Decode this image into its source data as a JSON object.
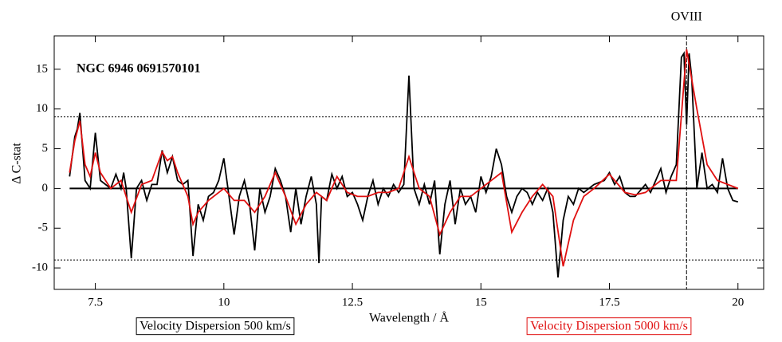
{
  "chart_data": {
    "type": "line",
    "text_label": "NGC 6946 0691570101",
    "x_label": "Wavelength / Å",
    "y_label": "Δ C-stat",
    "xlim": [
      6.7,
      20.5
    ],
    "ylim": [
      -12.7,
      19.2
    ],
    "xticks": [
      7.5,
      10,
      12.5,
      15,
      17.5,
      20
    ],
    "yticks": [
      -10,
      -5,
      0,
      5,
      10,
      15
    ],
    "hlines": [
      9,
      -9
    ],
    "zero_line": {
      "y": 0,
      "x": [
        7,
        20
      ]
    },
    "annotations": [
      {
        "text": "OVIII",
        "x": 19
      }
    ],
    "series": [
      {
        "name": "Velocity Dispersion 500 km/s",
        "color": "#000000",
        "x": [
          7.0,
          7.1,
          7.15,
          7.2,
          7.3,
          7.4,
          7.5,
          7.6,
          7.8,
          7.9,
          8.0,
          8.05,
          8.1,
          8.2,
          8.3,
          8.4,
          8.5,
          8.6,
          8.7,
          8.8,
          8.9,
          9.0,
          9.1,
          9.2,
          9.3,
          9.4,
          9.5,
          9.6,
          9.7,
          9.8,
          9.9,
          10.0,
          10.1,
          10.2,
          10.3,
          10.4,
          10.5,
          10.6,
          10.7,
          10.8,
          10.9,
          11.0,
          11.1,
          11.2,
          11.3,
          11.4,
          11.5,
          11.6,
          11.7,
          11.8,
          11.85,
          11.9,
          12.0,
          12.1,
          12.2,
          12.3,
          12.4,
          12.5,
          12.6,
          12.7,
          12.8,
          12.9,
          13.0,
          13.1,
          13.2,
          13.3,
          13.4,
          13.5,
          13.6,
          13.7,
          13.8,
          13.9,
          14.0,
          14.1,
          14.2,
          14.3,
          14.4,
          14.5,
          14.6,
          14.7,
          14.8,
          14.9,
          15.0,
          15.1,
          15.2,
          15.3,
          15.4,
          15.5,
          15.6,
          15.7,
          15.8,
          15.9,
          16.0,
          16.1,
          16.2,
          16.3,
          16.4,
          16.5,
          16.6,
          16.7,
          16.8,
          16.9,
          17.0,
          17.2,
          17.4,
          17.5,
          17.6,
          17.7,
          17.8,
          17.9,
          18.0,
          18.2,
          18.3,
          18.4,
          18.5,
          18.6,
          18.7,
          18.8,
          18.9,
          18.95,
          19.0,
          19.05,
          19.1,
          19.2,
          19.3,
          19.4,
          19.5,
          19.6,
          19.7,
          19.8,
          19.9,
          20.0
        ],
        "values": [
          1.5,
          6.5,
          7.5,
          9.5,
          1,
          0,
          7,
          1,
          0,
          1.8,
          0,
          2,
          0,
          -8.8,
          0,
          1,
          -1.5,
          0.5,
          0.5,
          4.8,
          2,
          4,
          1,
          0.5,
          1,
          -8.5,
          -2,
          -4,
          -1,
          -0.5,
          1,
          3.8,
          -1,
          -5.8,
          -1,
          1,
          -2,
          -7.8,
          0,
          -3,
          -1,
          2.5,
          1,
          -1,
          -5.5,
          0,
          -4.5,
          -1,
          1.5,
          -2,
          -9.4,
          -1,
          -1.5,
          1.8,
          0,
          1.5,
          -1,
          -0.5,
          -2,
          -4,
          -1,
          1,
          -2,
          0,
          -1,
          0.5,
          -0.5,
          0.5,
          14.2,
          0,
          -2,
          0.5,
          -2,
          1,
          -8.3,
          -2,
          1,
          -4.5,
          0,
          -2,
          -1,
          -3,
          1.5,
          -0.5,
          1.5,
          5,
          3,
          -1,
          -3,
          -1,
          0,
          -0.5,
          -2,
          -0.5,
          -1.5,
          0,
          -3,
          -11.2,
          -4,
          -1,
          -2,
          0,
          -0.5,
          0.5,
          1,
          2,
          0.5,
          1.5,
          -0.5,
          -1,
          -1,
          0.5,
          -0.5,
          1,
          2.5,
          -0.5,
          1.5,
          3,
          16.5,
          17,
          8,
          17,
          14,
          0,
          4.5,
          0,
          0.5,
          -0.5,
          3.8,
          0,
          -1.5,
          -1.7
        ]
      },
      {
        "name": "Velocity Dispersion 5000 km/s",
        "color": "#e01010",
        "x": [
          7.0,
          7.1,
          7.2,
          7.3,
          7.4,
          7.5,
          7.6,
          7.8,
          8.0,
          8.2,
          8.4,
          8.6,
          8.8,
          8.9,
          9.0,
          9.1,
          9.3,
          9.4,
          9.5,
          9.7,
          9.9,
          10.0,
          10.2,
          10.4,
          10.6,
          10.8,
          11.0,
          11.2,
          11.4,
          11.6,
          11.8,
          12.0,
          12.2,
          12.4,
          12.6,
          12.8,
          13.0,
          13.2,
          13.4,
          13.6,
          13.8,
          14.0,
          14.2,
          14.4,
          14.6,
          14.8,
          15.0,
          15.2,
          15.4,
          15.6,
          15.8,
          16.0,
          16.2,
          16.4,
          16.6,
          16.8,
          17.0,
          17.2,
          17.5,
          17.8,
          18.0,
          18.2,
          18.5,
          18.8,
          19.0,
          19.2,
          19.4,
          19.6,
          19.8,
          20.0
        ],
        "values": [
          2,
          6,
          8.5,
          3,
          1.5,
          4.5,
          2,
          0,
          1,
          -3,
          0.5,
          1,
          4.6,
          3.5,
          4,
          2,
          -1,
          -4.5,
          -3,
          -1.5,
          -0.5,
          0,
          -1.5,
          -1.5,
          -3,
          -1,
          2,
          -1,
          -4.5,
          -2,
          -0.5,
          -1.5,
          1.5,
          -0.5,
          -1,
          -1,
          -0.5,
          -0.5,
          0,
          4,
          0,
          -1,
          -5.8,
          -3,
          -1,
          -1,
          0,
          1,
          2,
          -5.5,
          -3,
          -1,
          0.5,
          -1,
          -9.8,
          -4,
          -1,
          0,
          1.8,
          -0.5,
          -0.8,
          -0.5,
          1,
          1,
          17.5,
          10,
          3,
          1,
          0.5,
          0
        ]
      }
    ]
  }
}
